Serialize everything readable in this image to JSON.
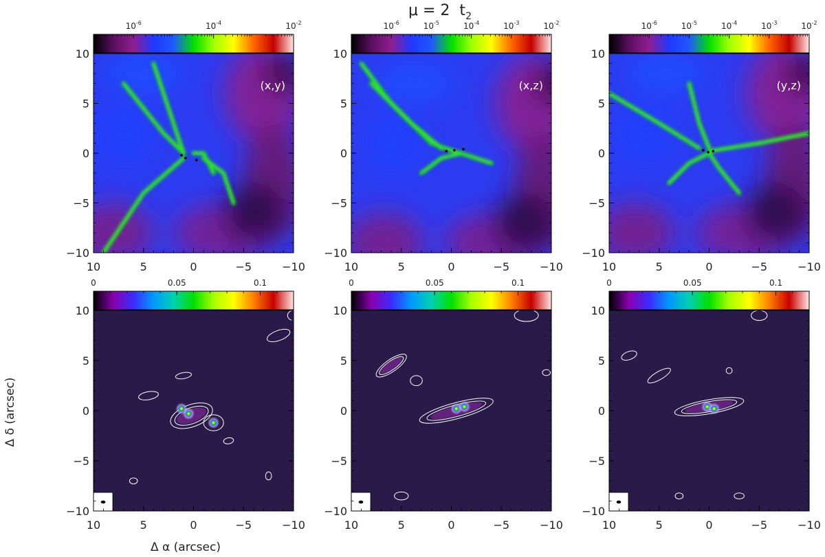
{
  "figure": {
    "title_parts": {
      "mu": "μ",
      "eq": " = 2",
      "t": "t",
      "sub": "2"
    },
    "xlabel": "Δ α (arcsec)",
    "ylabel": "Δ δ (arcsec)",
    "colors": {
      "column_density_cmap": [
        "#000000",
        "#5a0f5f",
        "#8d1f90",
        "#2037ff",
        "#1f59ff",
        "#00e000",
        "#a0ff00",
        "#ffff00",
        "#ff6600",
        "#c40000",
        "#ffe6e6"
      ],
      "flux_cmap": [
        "#000000",
        "#8a00b0",
        "#3a2cff",
        "#0099ff",
        "#00d0b0",
        "#00e000",
        "#a8ff00",
        "#ffff00",
        "#ff8000",
        "#c80000",
        "#ffe6e6"
      ],
      "background_flux": "#2a1a4a",
      "contour": "#ffffff"
    }
  },
  "chart_data": [
    {
      "type": "heatmap",
      "row": "top",
      "panel": "(x,y)",
      "quantity": "column density (log colour scale)",
      "colorbar_scale": "log",
      "colorbar_range": [
        1e-07,
        0.01
      ],
      "colorbar_ticks": [
        {
          "base": "10",
          "exp": "-6"
        },
        {
          "base": "10",
          "exp": "-4"
        },
        {
          "base": "10",
          "exp": "-2"
        }
      ],
      "xlim": [
        10,
        -10
      ],
      "ylim": [
        -10,
        10
      ],
      "xticks": [
        "10",
        "5",
        "0",
        "−5",
        "−10"
      ],
      "yticks": [
        "10",
        "5",
        "0",
        "−5",
        "−10"
      ],
      "features": {
        "filaments": [
          [
            [
              7,
              7
            ],
            [
              3,
              2
            ],
            [
              1,
              0
            ]
          ],
          [
            [
              9,
              -10
            ],
            [
              5,
              -4
            ],
            [
              1,
              -0.5
            ]
          ],
          [
            [
              4,
              9
            ],
            [
              2,
              3
            ],
            [
              1,
              0
            ]
          ],
          [
            [
              -2,
              -2
            ],
            [
              -1,
              0
            ],
            [
              0,
              0
            ]
          ],
          [
            [
              -4,
              -5
            ],
            [
              -3,
              -2
            ],
            [
              -1,
              -0.5
            ]
          ]
        ],
        "cores": [
          [
            1.2,
            -0.2
          ],
          [
            0.8,
            -0.5
          ],
          [
            -0.3,
            -0.7
          ]
        ]
      }
    },
    {
      "type": "heatmap",
      "row": "top",
      "panel": "(x,z)",
      "quantity": "column density (log colour scale)",
      "colorbar_scale": "log",
      "colorbar_range": [
        1e-07,
        0.01
      ],
      "colorbar_ticks": [
        {
          "base": "10",
          "exp": "-6"
        },
        {
          "base": "10",
          "exp": "-5"
        },
        {
          "base": "10",
          "exp": "-4"
        },
        {
          "base": "10",
          "exp": "-3"
        },
        {
          "base": "10",
          "exp": "-2"
        }
      ],
      "xlim": [
        10,
        -10
      ],
      "ylim": [
        -10,
        10
      ],
      "xticks": [
        "10",
        "5",
        "0",
        "−5",
        "−10"
      ],
      "yticks": [
        "10",
        "5",
        "0",
        "−5",
        "−10"
      ],
      "features": {
        "filaments": [
          [
            [
              9,
              9
            ],
            [
              6,
              5
            ],
            [
              2,
              1
            ],
            [
              0,
              0.3
            ],
            [
              -4,
              -1
            ]
          ],
          [
            [
              8,
              7
            ],
            [
              4,
              3
            ],
            [
              1,
              0.5
            ]
          ],
          [
            [
              3,
              -2
            ],
            [
              1,
              -0.5
            ],
            [
              -1,
              0
            ]
          ]
        ],
        "cores": [
          [
            0.5,
            0.2
          ],
          [
            -0.3,
            0.3
          ],
          [
            -1.2,
            0.4
          ]
        ]
      }
    },
    {
      "type": "heatmap",
      "row": "top",
      "panel": "(y,z)",
      "quantity": "column density (log colour scale)",
      "colorbar_scale": "log",
      "colorbar_range": [
        1e-07,
        0.01
      ],
      "colorbar_ticks": [
        {
          "base": "10",
          "exp": "-6"
        },
        {
          "base": "10",
          "exp": "-5"
        },
        {
          "base": "10",
          "exp": "-4"
        },
        {
          "base": "10",
          "exp": "-3"
        },
        {
          "base": "10",
          "exp": "-2"
        }
      ],
      "xlim": [
        10,
        -10
      ],
      "ylim": [
        -10,
        10
      ],
      "xticks": [
        "10",
        "5",
        "0",
        "−5",
        "−10"
      ],
      "yticks": [
        "10",
        "5",
        "0",
        "−5",
        "−10"
      ],
      "features": {
        "filaments": [
          [
            [
              10,
              6
            ],
            [
              5,
              3
            ],
            [
              1,
              0.5
            ]
          ],
          [
            [
              -10,
              2
            ],
            [
              -5,
              1
            ],
            [
              0,
              0.2
            ]
          ],
          [
            [
              4,
              -3
            ],
            [
              2,
              -1
            ],
            [
              0,
              0
            ]
          ],
          [
            [
              -3,
              -4
            ],
            [
              -1,
              -1.5
            ],
            [
              0,
              0
            ]
          ],
          [
            [
              2,
              7
            ],
            [
              1,
              3
            ],
            [
              0,
              0.5
            ]
          ]
        ],
        "cores": [
          [
            0.6,
            0.3
          ],
          [
            0.1,
            0.1
          ],
          [
            -0.4,
            0.2
          ]
        ]
      }
    },
    {
      "type": "heatmap",
      "row": "bottom",
      "panel": "(x,y)",
      "quantity": "synthetic flux (linear colour scale)",
      "colorbar_scale": "linear",
      "colorbar_range": [
        0,
        0.12
      ],
      "colorbar_ticks": [
        {
          "base": "0",
          "exp": ""
        },
        {
          "base": "0.05",
          "exp": ""
        },
        {
          "base": "0.1",
          "exp": ""
        }
      ],
      "xlim": [
        10,
        -10
      ],
      "ylim": [
        -10,
        10
      ],
      "xticks": [
        "10",
        "5",
        "0",
        "−5",
        "−10"
      ],
      "yticks": [
        "10",
        "5",
        "0",
        "−5",
        "−10"
      ],
      "features": {
        "peaks": [
          [
            0.5,
            -0.3
          ],
          [
            -2.0,
            -1.2
          ],
          [
            1.2,
            0.2
          ]
        ],
        "contour_blobs": [
          [
            0.2,
            -0.5,
            2.2,
            1.1,
            -20
          ],
          [
            -2.0,
            -1.2,
            1.0,
            0.8,
            0
          ],
          [
            1.0,
            3.5,
            0.3,
            0.8,
            80
          ],
          [
            4.5,
            1.5,
            0.4,
            1.0,
            80
          ],
          [
            -3.5,
            -3.0,
            0.3,
            0.5,
            80
          ],
          [
            -8.5,
            7.5,
            0.5,
            1.2,
            70
          ],
          [
            -10.0,
            9.5,
            0.6,
            0.5,
            0
          ],
          [
            6.0,
            -7.0,
            0.4,
            0.3,
            0
          ],
          [
            -7.5,
            -6.5,
            0.3,
            0.4,
            0
          ]
        ],
        "beam": [
          9.2,
          -9.3
        ]
      }
    },
    {
      "type": "heatmap",
      "row": "bottom",
      "panel": "(x,z)",
      "quantity": "synthetic flux (linear colour scale)",
      "colorbar_scale": "linear",
      "colorbar_range": [
        0,
        0.12
      ],
      "colorbar_ticks": [
        {
          "base": "0",
          "exp": ""
        },
        {
          "base": "0.05",
          "exp": ""
        },
        {
          "base": "0.1",
          "exp": ""
        }
      ],
      "xlim": [
        10,
        -10
      ],
      "ylim": [
        -10,
        10
      ],
      "xticks": [
        "10",
        "5",
        "0",
        "−5",
        "−10"
      ],
      "yticks": [
        "10",
        "5",
        "0",
        "−5",
        "−10"
      ],
      "features": {
        "peaks": [
          [
            -0.5,
            0.2
          ],
          [
            -1.3,
            0.4
          ]
        ],
        "contour_blobs": [
          [
            -0.5,
            0.0,
            3.8,
            0.8,
            -15
          ],
          [
            6.0,
            4.5,
            1.8,
            0.6,
            -35
          ],
          [
            3.5,
            3.0,
            0.6,
            0.5,
            0
          ],
          [
            -7.5,
            9.5,
            1.2,
            0.6,
            0
          ],
          [
            -9.5,
            3.8,
            0.4,
            0.3,
            0
          ],
          [
            5.0,
            -8.5,
            0.7,
            0.4,
            0
          ]
        ],
        "beam": [
          9.2,
          -9.3
        ]
      }
    },
    {
      "type": "heatmap",
      "row": "bottom",
      "panel": "(y,z)",
      "quantity": "synthetic flux (linear colour scale)",
      "colorbar_scale": "linear",
      "colorbar_range": [
        0,
        0.12
      ],
      "colorbar_ticks": [
        {
          "base": "0",
          "exp": ""
        },
        {
          "base": "0.05",
          "exp": ""
        },
        {
          "base": "0.1",
          "exp": ""
        }
      ],
      "xlim": [
        10,
        -10
      ],
      "ylim": [
        -10,
        10
      ],
      "xticks": [
        "10",
        "5",
        "0",
        "−5",
        "−10"
      ],
      "yticks": [
        "10",
        "5",
        "0",
        "−5",
        "−10"
      ],
      "features": {
        "peaks": [
          [
            0.2,
            0.4
          ],
          [
            -0.5,
            0.2
          ]
        ],
        "contour_blobs": [
          [
            0.0,
            0.4,
            3.5,
            0.7,
            -10
          ],
          [
            5.0,
            3.5,
            1.3,
            0.4,
            -30
          ],
          [
            8.0,
            5.5,
            0.8,
            0.4,
            -20
          ],
          [
            -5.0,
            9.5,
            0.8,
            0.5,
            0
          ],
          [
            -2.0,
            4.0,
            0.3,
            0.3,
            0
          ],
          [
            -3.0,
            -8.5,
            0.5,
            0.3,
            0
          ],
          [
            3.0,
            -8.5,
            0.4,
            0.3,
            0
          ]
        ],
        "beam": [
          9.2,
          -9.3
        ]
      }
    }
  ]
}
